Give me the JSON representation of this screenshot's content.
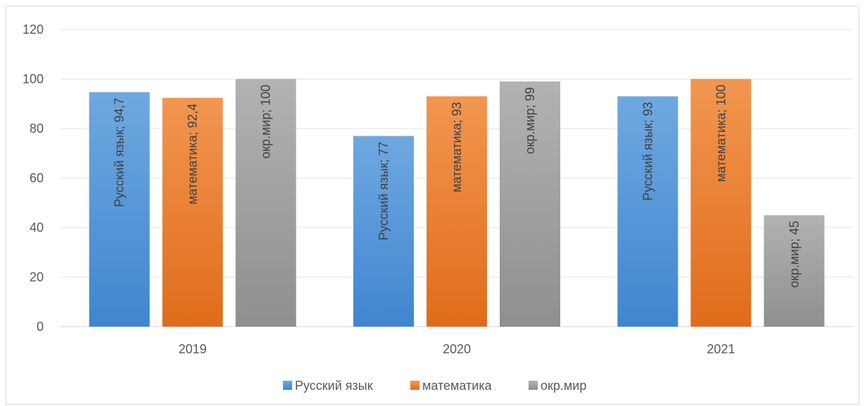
{
  "chart_data": {
    "type": "bar",
    "title": "",
    "xlabel": "",
    "ylabel": "",
    "categories": [
      "2019",
      "2020",
      "2021"
    ],
    "ylim": [
      0,
      120
    ],
    "yticks": [
      0,
      20,
      40,
      60,
      80,
      100,
      120
    ],
    "grid": true,
    "legend_position": "bottom",
    "series": [
      {
        "name": "Русский язык",
        "values": [
          94.7,
          77,
          93
        ],
        "labels": [
          "Русский язык; 94,7",
          "Русский язык; 77",
          "Русский язык; 93"
        ],
        "color_top": "#6fa8e0",
        "color_bottom": "#3f86d0"
      },
      {
        "name": "математика",
        "values": [
          92.4,
          93,
          100
        ],
        "labels": [
          "математика; 92,4",
          "математика; 93",
          "математика; 100"
        ],
        "color_top": "#f29650",
        "color_bottom": "#e06c1a"
      },
      {
        "name": "окр.мир",
        "values": [
          100,
          99,
          45
        ],
        "labels": [
          "окр.мир; 100",
          "окр.мир; 99",
          "окр.мир; 45"
        ],
        "color_top": "#b2b2b2",
        "color_bottom": "#8f8f8f"
      }
    ]
  }
}
